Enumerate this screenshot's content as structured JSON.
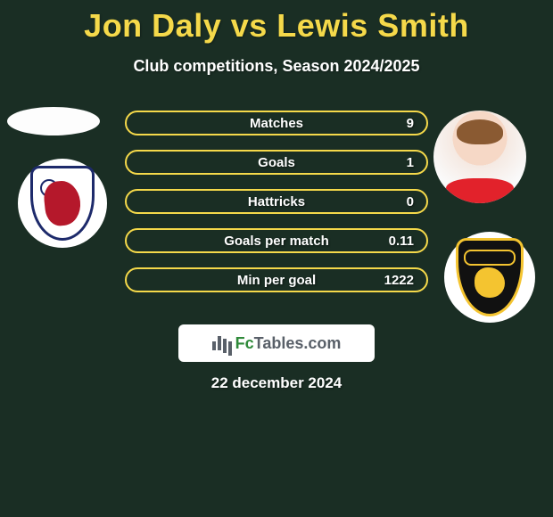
{
  "header": {
    "title": "Jon Daly vs Lewis Smith",
    "subtitle": "Club competitions, Season 2024/2025"
  },
  "stats": [
    {
      "label": "Matches",
      "value": "9"
    },
    {
      "label": "Goals",
      "value": "1"
    },
    {
      "label": "Hattricks",
      "value": "0"
    },
    {
      "label": "Goals per match",
      "value": "0.11"
    },
    {
      "label": "Min per goal",
      "value": "1222"
    }
  ],
  "brand": {
    "prefix": "Fc",
    "suffix": "Tables.com"
  },
  "date": "22 december 2024",
  "colors": {
    "background": "#1a2e24",
    "accent_yellow": "#f5d94a",
    "text_white": "#ffffff",
    "brand_grey": "#596069",
    "brand_green": "#2f8a3a",
    "crest_left_border": "#1d2a6b",
    "crest_left_lion": "#b5182b",
    "crest_right_bg": "#111111",
    "crest_right_gold": "#f4c430",
    "shirt_red": "#e2222b"
  },
  "left": {
    "photo_desc": "player-photo-jon-daly",
    "crest_desc": "raith-rovers-crest"
  },
  "right": {
    "photo_desc": "player-photo-lewis-smith",
    "crest_desc": "livingston-crest"
  }
}
